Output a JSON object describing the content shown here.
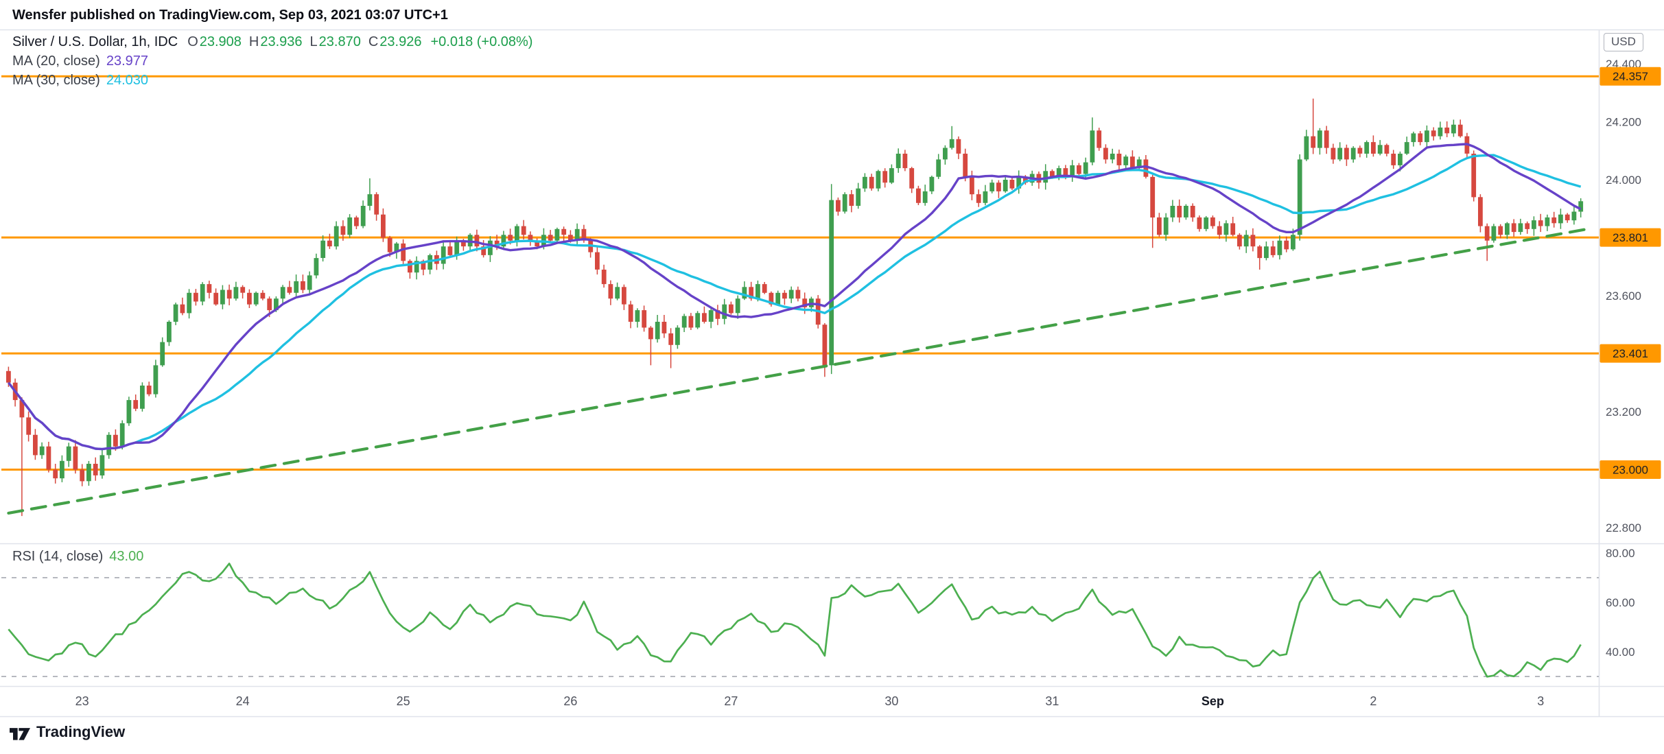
{
  "header": {
    "publish_line": "Wensfer published on TradingView.com, Sep 03, 2021 03:07 UTC+1"
  },
  "main_legend": {
    "symbol_title": "Silver / U.S. Dollar, 1h, IDC",
    "ohlc": [
      {
        "label": "O",
        "value": "23.908"
      },
      {
        "label": "H",
        "value": "23.936"
      },
      {
        "label": "L",
        "value": "23.870"
      },
      {
        "label": "C",
        "value": "23.926"
      }
    ],
    "change": "+0.018 (+0.08%)",
    "value_color": "#1b9e4b"
  },
  "ma_legends": [
    {
      "label": "MA (20, close)",
      "value": "23.977",
      "color": "#6642c8"
    },
    {
      "label": "MA (30, close)",
      "value": "24.030",
      "color": "#1fc0e1"
    }
  ],
  "rsi_legend": {
    "label": "RSI (14, close)",
    "value": "43.00",
    "color": "#4caf50"
  },
  "price_axis": {
    "currency_label": "USD",
    "ticks": [
      {
        "label": "24.400",
        "value": 24.4
      },
      {
        "label": "24.200",
        "value": 24.2
      },
      {
        "label": "24.000",
        "value": 24.0
      },
      {
        "label": "23.600",
        "value": 23.6
      },
      {
        "label": "23.200",
        "value": 23.2
      },
      {
        "label": "22.800",
        "value": 22.8
      }
    ],
    "line_labels": [
      {
        "label": "24.357",
        "value": 24.357
      },
      {
        "label": "23.801",
        "value": 23.801
      },
      {
        "label": "23.401",
        "value": 23.401
      },
      {
        "label": "23.000",
        "value": 23.0
      }
    ]
  },
  "time_axis": {
    "ticks": [
      {
        "label": "23",
        "bar": 11,
        "emph": false
      },
      {
        "label": "24",
        "bar": 35,
        "emph": false
      },
      {
        "label": "25",
        "bar": 59,
        "emph": false
      },
      {
        "label": "26",
        "bar": 84,
        "emph": false
      },
      {
        "label": "27",
        "bar": 108,
        "emph": false
      },
      {
        "label": "30",
        "bar": 132,
        "emph": false
      },
      {
        "label": "31",
        "bar": 156,
        "emph": false
      },
      {
        "label": "Sep",
        "bar": 180,
        "emph": true
      },
      {
        "label": "2",
        "bar": 204,
        "emph": false
      },
      {
        "label": "3",
        "bar": 229,
        "emph": false
      }
    ]
  },
  "footer": {
    "brand": "TradingView"
  },
  "chart_data": [
    {
      "type": "candlestick",
      "title": "Silver / U.S. Dollar",
      "interval": "1h",
      "exchange": "IDC",
      "ohlc_current": {
        "open": 23.908,
        "high": 23.936,
        "low": 23.87,
        "close": 23.926,
        "change": 0.018,
        "change_pct": 0.08
      },
      "ylim": [
        22.72,
        24.44
      ],
      "y_ticks": [
        24.4,
        24.2,
        24.0,
        23.6,
        23.2,
        22.8
      ],
      "x_ticks": [
        "23",
        "24",
        "25",
        "26",
        "27",
        "30",
        "31",
        "Sep",
        "2",
        "3"
      ],
      "up_color": "#3f9e4f",
      "down_color": "#d6483f",
      "horizontal_lines": {
        "color": "#ff9800",
        "levels": [
          24.357,
          23.801,
          23.401,
          23.0
        ]
      },
      "trendline": {
        "style": "dashed",
        "color": "#43a047",
        "from": {
          "bar": 0,
          "price": 22.85
        },
        "to": {
          "bar": 236,
          "price": 23.83
        }
      },
      "overlays": [
        {
          "name": "MA",
          "period": 20,
          "source": "close",
          "last": 23.977,
          "color": "#6642c8"
        },
        {
          "name": "MA",
          "period": 30,
          "source": "close",
          "last": 24.03,
          "color": "#1fc0e1"
        }
      ],
      "first_open": 23.34,
      "closes": [
        23.3,
        23.24,
        23.18,
        23.12,
        23.05,
        23.08,
        23.0,
        22.97,
        23.03,
        23.08,
        23.0,
        22.96,
        23.02,
        22.98,
        23.05,
        23.12,
        23.08,
        23.16,
        23.24,
        23.21,
        23.29,
        23.26,
        23.36,
        23.44,
        23.51,
        23.57,
        23.54,
        23.61,
        23.58,
        23.64,
        23.61,
        23.57,
        23.62,
        23.59,
        23.63,
        23.61,
        23.57,
        23.61,
        23.59,
        23.55,
        23.59,
        23.63,
        23.61,
        23.65,
        23.62,
        23.67,
        23.73,
        23.79,
        23.77,
        23.84,
        23.81,
        23.87,
        23.84,
        23.91,
        23.95,
        23.88,
        23.8,
        23.75,
        23.78,
        23.72,
        23.68,
        23.72,
        23.69,
        23.74,
        23.71,
        23.77,
        23.74,
        23.79,
        23.77,
        23.81,
        23.77,
        23.74,
        23.79,
        23.77,
        23.81,
        23.79,
        23.84,
        23.81,
        23.79,
        23.77,
        23.81,
        23.79,
        23.83,
        23.81,
        23.79,
        23.83,
        23.79,
        23.75,
        23.69,
        23.64,
        23.59,
        23.63,
        23.57,
        23.51,
        23.55,
        23.49,
        23.45,
        23.51,
        23.47,
        23.43,
        23.49,
        23.53,
        23.49,
        23.54,
        23.51,
        23.55,
        23.52,
        23.57,
        23.54,
        23.59,
        23.63,
        23.59,
        23.64,
        23.61,
        23.57,
        23.61,
        23.59,
        23.62,
        23.59,
        23.56,
        23.59,
        23.5,
        23.36,
        23.93,
        23.89,
        23.95,
        23.91,
        23.97,
        24.01,
        23.97,
        24.03,
        23.99,
        24.04,
        24.09,
        24.04,
        23.97,
        23.92,
        23.96,
        24.01,
        24.07,
        24.11,
        24.14,
        24.09,
        24.01,
        23.95,
        23.92,
        23.96,
        23.99,
        23.96,
        24.0,
        23.97,
        24.01,
        23.99,
        24.02,
        23.99,
        24.03,
        24.01,
        24.04,
        24.01,
        24.05,
        24.02,
        24.06,
        24.17,
        24.11,
        24.07,
        24.09,
        24.05,
        24.08,
        24.04,
        24.07,
        24.01,
        23.87,
        23.81,
        23.87,
        23.91,
        23.87,
        23.91,
        23.87,
        23.83,
        23.87,
        23.84,
        23.81,
        23.85,
        23.81,
        23.77,
        23.81,
        23.77,
        23.73,
        23.77,
        23.74,
        23.79,
        23.76,
        23.81,
        24.07,
        24.15,
        24.11,
        24.17,
        24.11,
        24.07,
        24.11,
        24.07,
        24.11,
        24.09,
        24.13,
        24.09,
        24.12,
        24.09,
        24.05,
        24.09,
        24.13,
        24.16,
        24.13,
        24.17,
        24.15,
        24.18,
        24.16,
        24.19,
        24.15,
        24.09,
        23.94,
        23.84,
        23.79,
        23.84,
        23.81,
        23.85,
        23.82,
        23.85,
        23.83,
        23.86,
        23.84,
        23.87,
        23.85,
        23.88,
        23.86,
        23.89,
        23.926
      ],
      "wick_overrides": {
        "2": {
          "l": 22.84
        },
        "54": {
          "h": 24.005
        },
        "96": {
          "l": 23.36
        },
        "99": {
          "l": 23.35
        },
        "122": {
          "l": 23.32
        },
        "123": {
          "h": 23.985,
          "l": 23.33
        },
        "141": {
          "h": 24.185
        },
        "162": {
          "h": 24.215
        },
        "171": {
          "l": 23.765
        },
        "187": {
          "l": 23.69
        },
        "193": {
          "l": 23.79
        },
        "195": {
          "h": 24.28
        },
        "221": {
          "l": 23.72
        },
        "235": {
          "h": 23.936,
          "l": 23.87
        }
      }
    },
    {
      "type": "line",
      "title": "RSI (14, close)",
      "last": 43.0,
      "color": "#4caf50",
      "ylim": [
        20,
        90
      ],
      "levels_dashed": [
        70,
        30
      ],
      "y_ticks": [
        {
          "label": "80.00",
          "value": 80
        },
        {
          "label": "60.00",
          "value": 60
        },
        {
          "label": "40.00",
          "value": 40
        }
      ],
      "points": [
        [
          0,
          48
        ],
        [
          3,
          40
        ],
        [
          6,
          36
        ],
        [
          10,
          44
        ],
        [
          13,
          38
        ],
        [
          16,
          46
        ],
        [
          20,
          55
        ],
        [
          24,
          65
        ],
        [
          27,
          73
        ],
        [
          30,
          68
        ],
        [
          33,
          75
        ],
        [
          36,
          64
        ],
        [
          40,
          60
        ],
        [
          44,
          66
        ],
        [
          48,
          58
        ],
        [
          52,
          66
        ],
        [
          54,
          72
        ],
        [
          57,
          55
        ],
        [
          60,
          48
        ],
        [
          63,
          55
        ],
        [
          66,
          50
        ],
        [
          69,
          58
        ],
        [
          72,
          52
        ],
        [
          76,
          60
        ],
        [
          80,
          55
        ],
        [
          84,
          52
        ],
        [
          86,
          60
        ],
        [
          88,
          48
        ],
        [
          91,
          42
        ],
        [
          94,
          46
        ],
        [
          96,
          38
        ],
        [
          99,
          36
        ],
        [
          102,
          48
        ],
        [
          105,
          44
        ],
        [
          108,
          50
        ],
        [
          111,
          55
        ],
        [
          114,
          48
        ],
        [
          117,
          52
        ],
        [
          120,
          46
        ],
        [
          122,
          38
        ],
        [
          123,
          62
        ],
        [
          126,
          66
        ],
        [
          129,
          62
        ],
        [
          132,
          66
        ],
        [
          133,
          68
        ],
        [
          136,
          55
        ],
        [
          139,
          62
        ],
        [
          141,
          68
        ],
        [
          144,
          52
        ],
        [
          147,
          58
        ],
        [
          150,
          54
        ],
        [
          153,
          58
        ],
        [
          156,
          52
        ],
        [
          159,
          56
        ],
        [
          162,
          64
        ],
        [
          165,
          55
        ],
        [
          168,
          58
        ],
        [
          171,
          42
        ],
        [
          173,
          38
        ],
        [
          175,
          45
        ],
        [
          178,
          42
        ],
        [
          181,
          40
        ],
        [
          184,
          36
        ],
        [
          187,
          34
        ],
        [
          189,
          40
        ],
        [
          191,
          38
        ],
        [
          193,
          60
        ],
        [
          195,
          70
        ],
        [
          196,
          73
        ],
        [
          198,
          62
        ],
        [
          200,
          58
        ],
        [
          202,
          62
        ],
        [
          204,
          58
        ],
        [
          206,
          60
        ],
        [
          208,
          55
        ],
        [
          210,
          62
        ],
        [
          212,
          60
        ],
        [
          214,
          63
        ],
        [
          216,
          65
        ],
        [
          218,
          55
        ],
        [
          219,
          42
        ],
        [
          221,
          30
        ],
        [
          223,
          33
        ],
        [
          225,
          30
        ],
        [
          227,
          35
        ],
        [
          229,
          33
        ],
        [
          231,
          38
        ],
        [
          233,
          36
        ],
        [
          235,
          43
        ]
      ]
    }
  ]
}
